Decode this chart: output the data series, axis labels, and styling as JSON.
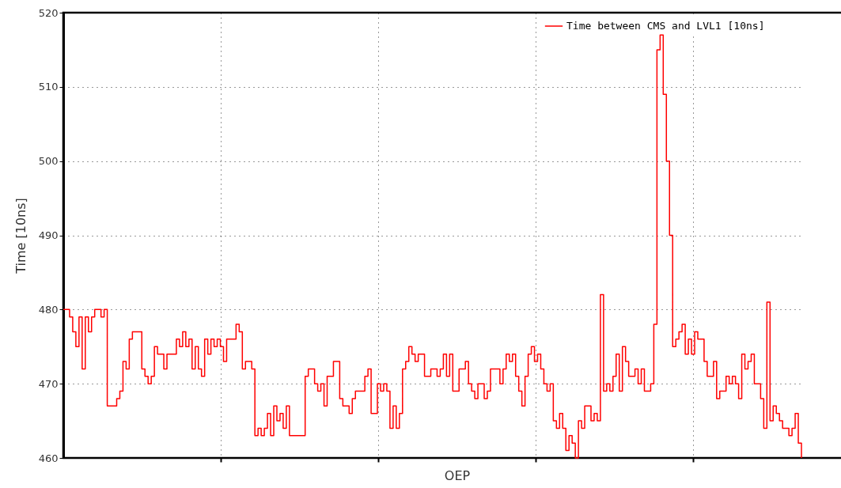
{
  "chart_data": {
    "type": "step",
    "xlabel": "OEP",
    "ylabel": "Time [10ns]",
    "categories": [
      null,
      null,
      null,
      null,
      null,
      null,
      null,
      null,
      null,
      null,
      null,
      null,
      null,
      null,
      null,
      null,
      null,
      null,
      null,
      null,
      null,
      null,
      null,
      null,
      null,
      null,
      null,
      null,
      null,
      null,
      null,
      null,
      null,
      null,
      null,
      null,
      null,
      null,
      null,
      null,
      null,
      null,
      null,
      null,
      null,
      null,
      null,
      null,
      null,
      null,
      null,
      null,
      null,
      null,
      null,
      null,
      null,
      null,
      null,
      null,
      null,
      null,
      null,
      null,
      null,
      null,
      null,
      null,
      null,
      null,
      null,
      null,
      null,
      null,
      null,
      null,
      null,
      null,
      null,
      null,
      null,
      null,
      null,
      null,
      null,
      null,
      null,
      null,
      null,
      null,
      null,
      null,
      null,
      null,
      null,
      null,
      null,
      null,
      null,
      null,
      null,
      null,
      null,
      null,
      null,
      null,
      null,
      null,
      null,
      null,
      null,
      null,
      null,
      null,
      null,
      null,
      null,
      null,
      null,
      null,
      null,
      null,
      null,
      null,
      null,
      null,
      null,
      null,
      null,
      null,
      null,
      null,
      null,
      null,
      null,
      null,
      null,
      null,
      null,
      null,
      null,
      null,
      null,
      null,
      null,
      null,
      null,
      null,
      null,
      null,
      null,
      null,
      null,
      null,
      null,
      null,
      null,
      null,
      null,
      null,
      null,
      null,
      null,
      null,
      null,
      null,
      null,
      null,
      null,
      null,
      null,
      null,
      null,
      null,
      null,
      null,
      null,
      null,
      null,
      null,
      null,
      null,
      null,
      null,
      null,
      null,
      null,
      null,
      null,
      null,
      null,
      null,
      null,
      null,
      null,
      null,
      null,
      null,
      null,
      null,
      null,
      null,
      null,
      null,
      null,
      null,
      null,
      null,
      null,
      null,
      null,
      null,
      null,
      null,
      null,
      null,
      null,
      null,
      null,
      null,
      null,
      null,
      null,
      null,
      null,
      null,
      null,
      null,
      null,
      null,
      null,
      null,
      null,
      null,
      null,
      null
    ],
    "series": [
      {
        "name": "Time between CMS and LVL1 [10ns]",
        "color": "#ff0000",
        "values": [
          480,
          480,
          479,
          477,
          475,
          479,
          472,
          479,
          477,
          479,
          480,
          480,
          479,
          480,
          467,
          467,
          467,
          468,
          469,
          473,
          472,
          476,
          477,
          477,
          477,
          472,
          471,
          470,
          471,
          475,
          474,
          474,
          472,
          474,
          474,
          474,
          476,
          475,
          477,
          475,
          476,
          472,
          475,
          472,
          471,
          476,
          474,
          476,
          475,
          476,
          475,
          473,
          476,
          476,
          476,
          478,
          477,
          472,
          473,
          473,
          472,
          463,
          464,
          463,
          464,
          466,
          463,
          467,
          465,
          466,
          464,
          467,
          463,
          463,
          463,
          463,
          463,
          471,
          472,
          472,
          470,
          469,
          470,
          467,
          471,
          471,
          473,
          473,
          468,
          467,
          467,
          466,
          468,
          469,
          469,
          469,
          471,
          472,
          466,
          466,
          470,
          469,
          470,
          469,
          464,
          467,
          464,
          466,
          472,
          473,
          475,
          474,
          473,
          474,
          474,
          471,
          471,
          472,
          472,
          471,
          472,
          474,
          471,
          474,
          469,
          469,
          472,
          472,
          473,
          470,
          469,
          468,
          470,
          470,
          468,
          469,
          472,
          472,
          472,
          470,
          472,
          474,
          473,
          474,
          471,
          469,
          467,
          471,
          474,
          475,
          473,
          474,
          472,
          470,
          469,
          470,
          465,
          464,
          466,
          464,
          461,
          463,
          462,
          460,
          465,
          464,
          467,
          467,
          465,
          466,
          465,
          482,
          469,
          470,
          469,
          471,
          474,
          469,
          475,
          473,
          471,
          471,
          472,
          470,
          472,
          469,
          469,
          470,
          478,
          515,
          517,
          509,
          500,
          490,
          475,
          476,
          477,
          478,
          474,
          476,
          474,
          477,
          476,
          476,
          473,
          471,
          471,
          473,
          468,
          469,
          469,
          471,
          470,
          471,
          470,
          468,
          474,
          472,
          473,
          474,
          470,
          470,
          468,
          464,
          481,
          465,
          467,
          466,
          465,
          464,
          464,
          463,
          464,
          466,
          462,
          460
        ]
      }
    ],
    "ylim": [
      460,
      520
    ],
    "yticks": [
      460,
      470,
      480,
      490,
      500,
      510,
      520
    ],
    "grid": true,
    "legend": "top right"
  }
}
